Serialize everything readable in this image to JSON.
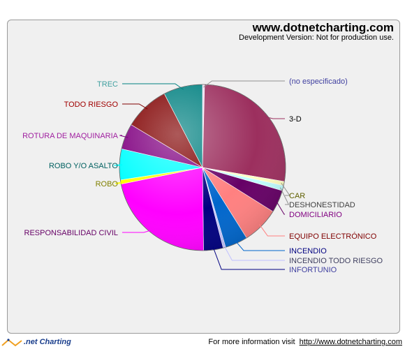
{
  "watermark": {
    "title": "www.dotnetcharting.com",
    "subtitle": "Development Version: Not for production use."
  },
  "footer": {
    "brand": ".net Charting",
    "info_text": "For more information visit",
    "info_link": "http://www.dotnetcharting.com"
  },
  "chart_data": {
    "type": "pie",
    "slices": [
      {
        "label": "(no especificado)",
        "value": 0.4,
        "color": "#e8d8f0"
      },
      {
        "label": "3-D",
        "value": 27.3,
        "color": "#9c2f5e"
      },
      {
        "label": "CAR",
        "value": 0.8,
        "color": "#ffffc0"
      },
      {
        "label": "DESHONESTIDAD",
        "value": 1.0,
        "color": "#c0ffff"
      },
      {
        "label": "DOMICILIARIO",
        "value": 4.4,
        "color": "#660066"
      },
      {
        "label": "EQUIPO ELECTRÓNICO",
        "value": 7.2,
        "color": "#ff8080"
      },
      {
        "label": "INCENDIO",
        "value": 4.4,
        "color": "#0066cc"
      },
      {
        "label": "INCENDIO TODO RIESGO",
        "value": 0.5,
        "color": "#c0c0ff"
      },
      {
        "label": "INFORTUNIO",
        "value": 3.8,
        "color": "#000080"
      },
      {
        "label": "RESPONSABILIDAD CIVIL",
        "value": 22.0,
        "color": "#ff00ff"
      },
      {
        "label": "ROBO",
        "value": 0.8,
        "color": "#ffff00"
      },
      {
        "label": "ROBO Y/O ASALTO",
        "value": 6.0,
        "color": "#00ffff"
      },
      {
        "label": "ROTURA DE MAQUINARIA",
        "value": 5.0,
        "color": "#800080"
      },
      {
        "label": "TODO RIESGO",
        "value": 8.8,
        "color": "#800000"
      },
      {
        "label": "TREC",
        "value": 7.6,
        "color": "#008080"
      }
    ]
  }
}
